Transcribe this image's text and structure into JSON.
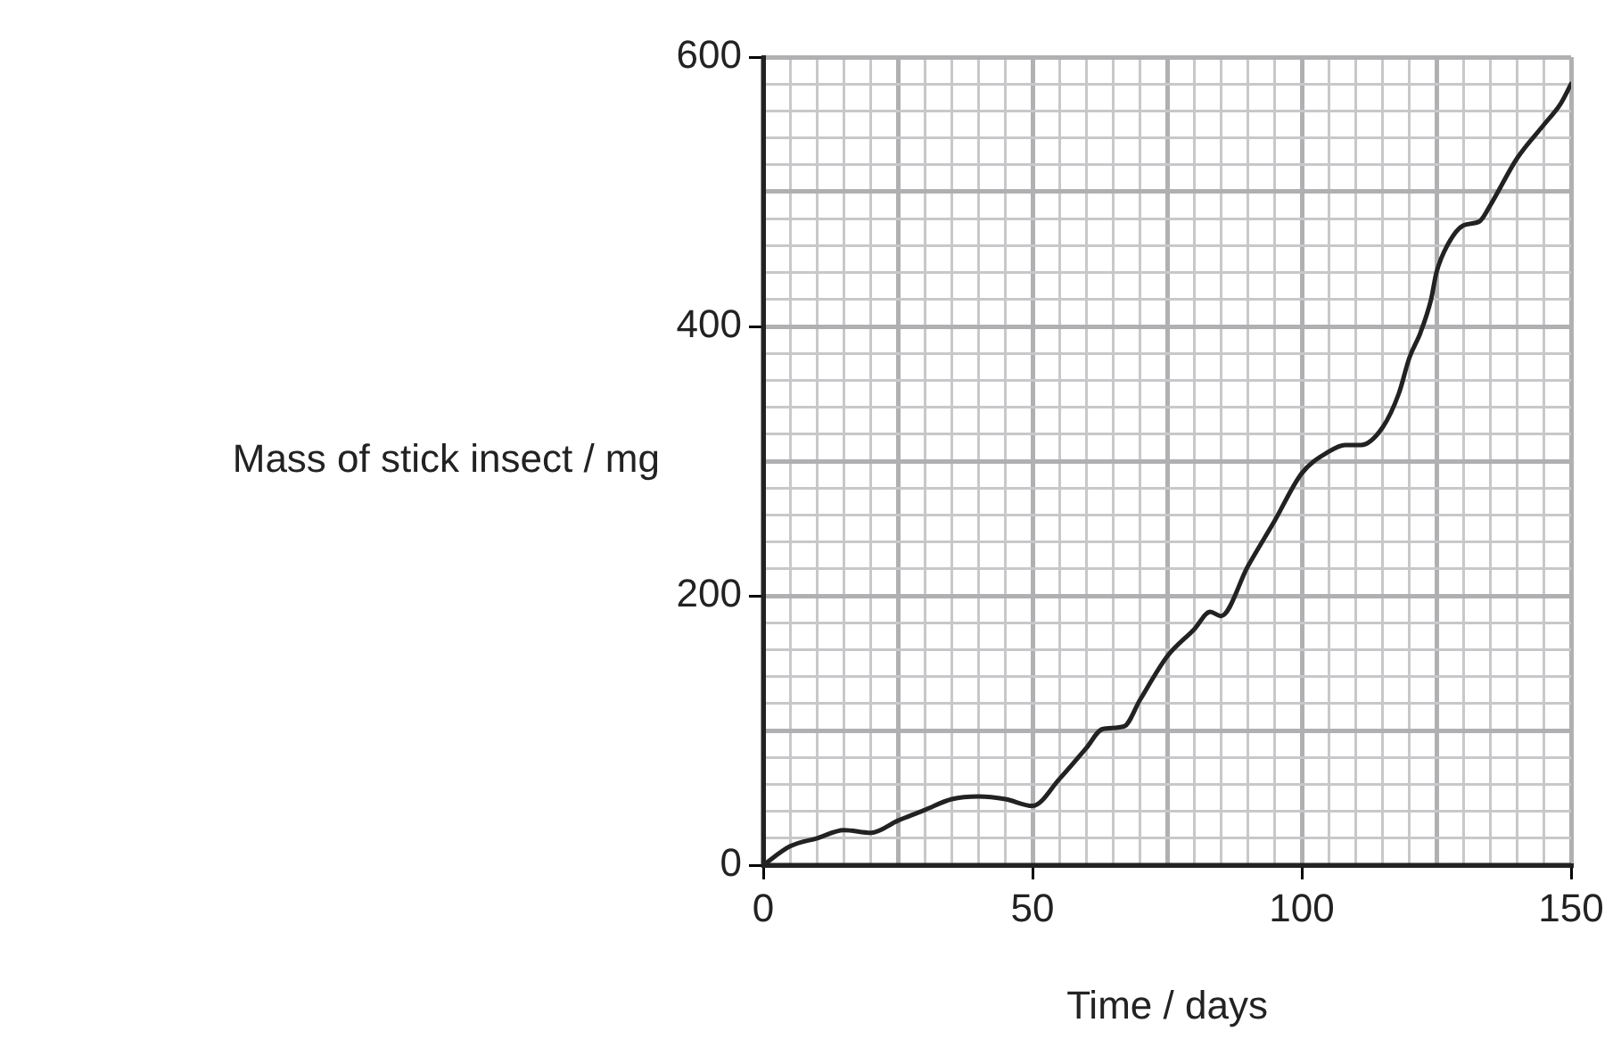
{
  "chart_data": {
    "type": "line",
    "xlabel": "Time / days",
    "ylabel": "Mass of stick insect / mg",
    "x": [
      0,
      5,
      10,
      15,
      20,
      25,
      30,
      35,
      40,
      45,
      50,
      55,
      60,
      63,
      67,
      70,
      75,
      80,
      83,
      85,
      90,
      95,
      100,
      105,
      108,
      111,
      115,
      118,
      120,
      122,
      124,
      125,
      127,
      130,
      133,
      135,
      140,
      145,
      148,
      150
    ],
    "series": [
      {
        "color": "#222222",
        "values": [
          0,
          14,
          20,
          26,
          24,
          33,
          41,
          49,
          51,
          49,
          44,
          64,
          87,
          101,
          103,
          123,
          155,
          175,
          188,
          185,
          222,
          256,
          291,
          307,
          312,
          312,
          325,
          350,
          377,
          395,
          420,
          440,
          460,
          475,
          478,
          490,
          525,
          550,
          565,
          580
        ]
      }
    ],
    "xlim": [
      0,
      150
    ],
    "ylim": [
      0,
      600
    ],
    "xticks": [
      0,
      {
        "value": 5,
        "label": null
      },
      {
        "value": 10,
        "label": null
      },
      {
        "value": 15,
        "label": null
      },
      {
        "value": 20,
        "label": null
      },
      {
        "value": 25,
        "label": null
      },
      {
        "value": 30,
        "label": null
      },
      {
        "value": 35,
        "label": null
      },
      {
        "value": 40,
        "label": null
      },
      {
        "value": 45,
        "label": null
      },
      50,
      {
        "value": 55,
        "label": null
      },
      {
        "value": 60,
        "label": null
      },
      {
        "value": 65,
        "label": null
      },
      {
        "value": 70,
        "label": null
      },
      {
        "value": 75,
        "label": null
      },
      {
        "value": 80,
        "label": null
      },
      {
        "value": 85,
        "label": null
      },
      {
        "value": 90,
        "label": null
      },
      {
        "value": 95,
        "label": null
      },
      100,
      {
        "value": 105,
        "label": null
      },
      {
        "value": 110,
        "label": null
      },
      {
        "value": 115,
        "label": null
      },
      {
        "value": 120,
        "label": null
      },
      {
        "value": 125,
        "label": null
      },
      {
        "value": 130,
        "label": null
      },
      {
        "value": 135,
        "label": null
      },
      {
        "value": 140,
        "label": null
      },
      {
        "value": 145,
        "label": null
      },
      150
    ],
    "yticks": [
      0,
      {
        "value": 20,
        "label": null
      },
      {
        "value": 40,
        "label": null
      },
      {
        "value": 60,
        "label": null
      },
      {
        "value": 80,
        "label": null
      },
      {
        "value": 100,
        "label": null
      },
      {
        "value": 120,
        "label": null
      },
      {
        "value": 140,
        "label": null
      },
      {
        "value": 160,
        "label": null
      },
      {
        "value": 180,
        "label": null
      },
      200,
      {
        "value": 220,
        "label": null
      },
      {
        "value": 240,
        "label": null
      },
      {
        "value": 260,
        "label": null
      },
      {
        "value": 280,
        "label": null
      },
      {
        "value": 300,
        "label": null
      },
      {
        "value": 320,
        "label": null
      },
      {
        "value": 340,
        "label": null
      },
      {
        "value": 360,
        "label": null
      },
      {
        "value": 380,
        "label": null
      },
      400,
      {
        "value": 420,
        "label": null
      },
      {
        "value": 440,
        "label": null
      },
      {
        "value": 460,
        "label": null
      },
      {
        "value": 480,
        "label": null
      },
      {
        "value": 500,
        "label": null
      },
      {
        "value": 520,
        "label": null
      },
      {
        "value": 540,
        "label": null
      },
      {
        "value": 560,
        "label": null
      },
      {
        "value": 580,
        "label": null
      },
      600
    ],
    "grid": true,
    "legend": false,
    "marker": "none",
    "line_style": "solid"
  }
}
